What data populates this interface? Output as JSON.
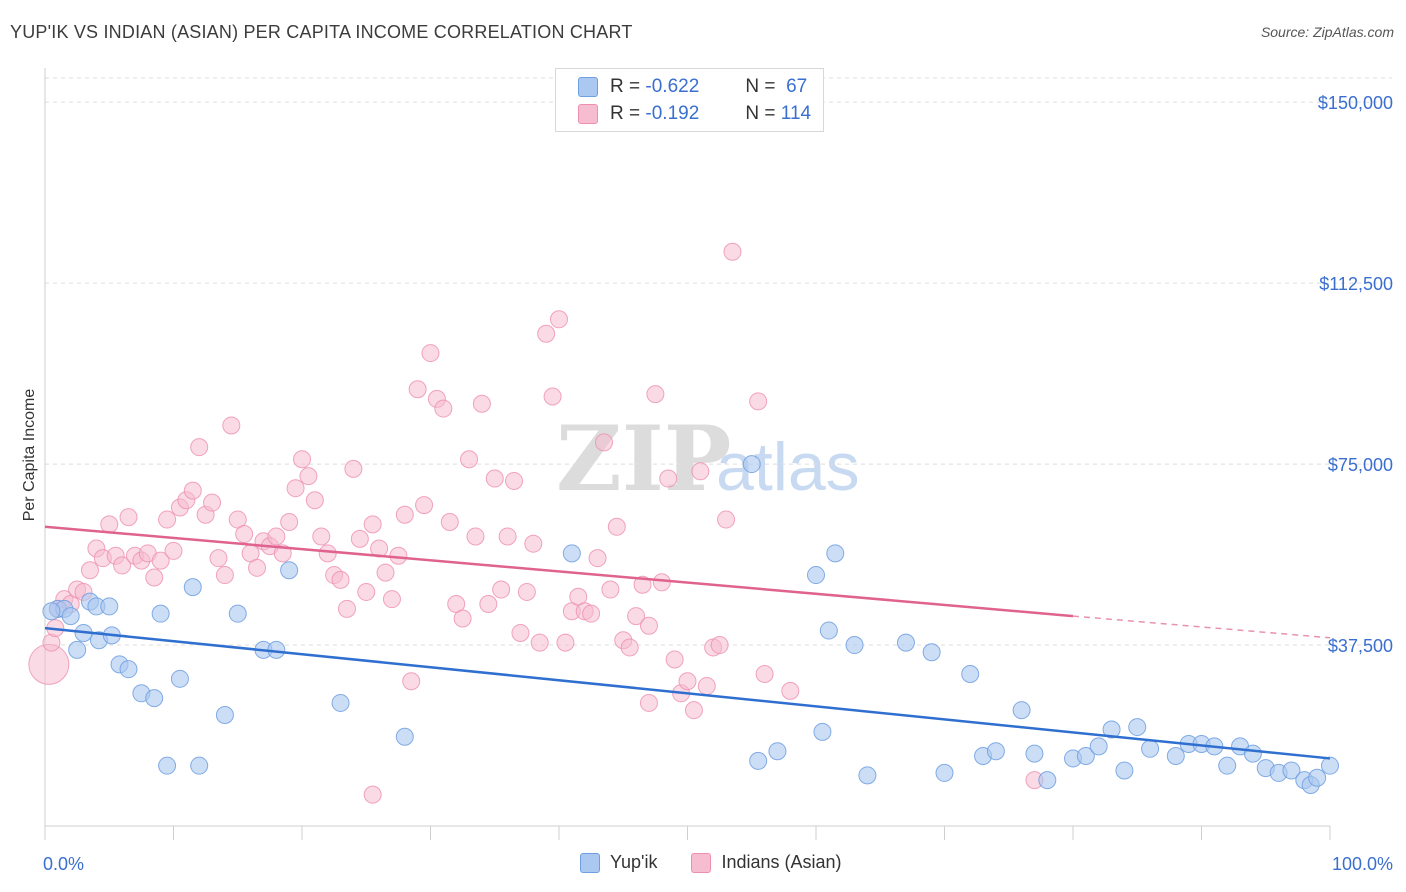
{
  "header": {
    "title": "YUP'IK VS INDIAN (ASIAN) PER CAPITA INCOME CORRELATION CHART",
    "source": "Source: ZipAtlas.com"
  },
  "watermark": {
    "zip": "ZIP",
    "atlas": "atlas"
  },
  "legend_top": {
    "rows": [
      {
        "r_label": "R =",
        "r_value": "-0.622",
        "n_label": "N =",
        "n_value": "67"
      },
      {
        "r_label": "R =",
        "r_value": "-0.192",
        "n_label": "N =",
        "n_value": "114"
      }
    ]
  },
  "colors": {
    "yupik_fill": "#aac8f0",
    "yupik_stroke": "#6f9fe0",
    "yupik_line": "#2f6fcf",
    "indian_fill": "#f6bcd0",
    "indian_stroke": "#ee8fb0",
    "indian_line": "#e0628e",
    "axis_label": "#3a6fcf"
  },
  "chart_data": {
    "type": "scatter",
    "title": "YUP'IK VS INDIAN (ASIAN) PER CAPITA INCOME CORRELATION CHART",
    "xlabel": "",
    "ylabel": "Per Capita Income",
    "xlim": [
      0,
      100
    ],
    "ylim": [
      0,
      155000
    ],
    "x_tick_labels": [
      "0.0%",
      "100.0%"
    ],
    "y_ticks": [
      37500,
      75000,
      112500,
      150000
    ],
    "y_tick_labels": [
      "$37,500",
      "$75,000",
      "$112,500",
      "$150,000"
    ],
    "grid": true,
    "legend_position": "top-center",
    "series": [
      {
        "name": "Yup'ik",
        "trend": {
          "x": [
            0,
            100
          ],
          "y": [
            41000,
            14000
          ]
        },
        "points": [
          [
            1,
            45000
          ],
          [
            1.5,
            45000
          ],
          [
            2,
            43500
          ],
          [
            2.5,
            36500
          ],
          [
            3,
            40000
          ],
          [
            3.5,
            46500
          ],
          [
            4,
            45500
          ],
          [
            4.2,
            38500
          ],
          [
            5,
            45500
          ],
          [
            5.2,
            39500
          ],
          [
            5.8,
            33500
          ],
          [
            6.5,
            32500
          ],
          [
            7.5,
            27500
          ],
          [
            8.5,
            26500
          ],
          [
            9,
            44000
          ],
          [
            9.5,
            12500
          ],
          [
            10.5,
            30500
          ],
          [
            11.5,
            49500
          ],
          [
            12,
            12500
          ],
          [
            14,
            23000
          ],
          [
            15,
            44000
          ],
          [
            17,
            36500
          ],
          [
            18,
            36500
          ],
          [
            19,
            53000
          ],
          [
            23,
            25500
          ],
          [
            28,
            18500
          ],
          [
            41,
            56500
          ],
          [
            55,
            75000
          ],
          [
            55.5,
            13500
          ],
          [
            57,
            15500
          ],
          [
            60,
            52000
          ],
          [
            60.5,
            19500
          ],
          [
            61,
            40500
          ],
          [
            61.5,
            56500
          ],
          [
            63,
            37500
          ],
          [
            64,
            10500
          ],
          [
            67,
            38000
          ],
          [
            69,
            36000
          ],
          [
            70,
            11000
          ],
          [
            72,
            31500
          ],
          [
            73,
            14500
          ],
          [
            74,
            15500
          ],
          [
            76,
            24000
          ],
          [
            77,
            15000
          ],
          [
            78,
            9500
          ],
          [
            80,
            14000
          ],
          [
            81,
            14500
          ],
          [
            82,
            16500
          ],
          [
            83,
            20000
          ],
          [
            84,
            11500
          ],
          [
            85,
            20500
          ],
          [
            86,
            16000
          ],
          [
            88,
            14500
          ],
          [
            89,
            17000
          ],
          [
            90,
            17000
          ],
          [
            91,
            16500
          ],
          [
            92,
            12500
          ],
          [
            93,
            16500
          ],
          [
            94,
            15000
          ],
          [
            95,
            12000
          ],
          [
            96,
            11000
          ],
          [
            97,
            11500
          ],
          [
            98,
            9500
          ],
          [
            98.5,
            8500
          ],
          [
            99,
            10000
          ],
          [
            100,
            12500
          ],
          [
            0.5,
            44500
          ]
        ]
      },
      {
        "name": "Indians (Asian)",
        "trend": {
          "x": [
            0,
            80,
            100
          ],
          "y": [
            62000,
            43500,
            39000
          ],
          "dashed_from_x": 80
        },
        "points": [
          [
            0.3,
            33500
          ],
          [
            0.5,
            38000
          ],
          [
            0.8,
            41000
          ],
          [
            1,
            45000
          ],
          [
            1.5,
            47000
          ],
          [
            2,
            46000
          ],
          [
            2.5,
            49000
          ],
          [
            3,
            48500
          ],
          [
            3.5,
            53000
          ],
          [
            4,
            57500
          ],
          [
            4.5,
            55500
          ],
          [
            5,
            62500
          ],
          [
            5.5,
            56000
          ],
          [
            6,
            54000
          ],
          [
            6.5,
            64000
          ],
          [
            7,
            56000
          ],
          [
            7.5,
            55000
          ],
          [
            8,
            56500
          ],
          [
            8.5,
            51500
          ],
          [
            9,
            55000
          ],
          [
            9.5,
            63500
          ],
          [
            10,
            57000
          ],
          [
            10.5,
            66000
          ],
          [
            11,
            67500
          ],
          [
            11.5,
            69500
          ],
          [
            12,
            78500
          ],
          [
            12.5,
            64500
          ],
          [
            13,
            67000
          ],
          [
            13.5,
            55500
          ],
          [
            14,
            52000
          ],
          [
            14.5,
            83000
          ],
          [
            15,
            63500
          ],
          [
            15.5,
            60500
          ],
          [
            16,
            56500
          ],
          [
            16.5,
            53500
          ],
          [
            17,
            59000
          ],
          [
            17.5,
            58000
          ],
          [
            18,
            60000
          ],
          [
            18.5,
            56500
          ],
          [
            19,
            63000
          ],
          [
            19.5,
            70000
          ],
          [
            20,
            76000
          ],
          [
            20.5,
            72500
          ],
          [
            21,
            67500
          ],
          [
            21.5,
            60000
          ],
          [
            22,
            56500
          ],
          [
            22.5,
            52000
          ],
          [
            23,
            51000
          ],
          [
            23.5,
            45000
          ],
          [
            24,
            74000
          ],
          [
            24.5,
            59500
          ],
          [
            25,
            48500
          ],
          [
            25.5,
            62500
          ],
          [
            26,
            57500
          ],
          [
            26.5,
            52500
          ],
          [
            27,
            47000
          ],
          [
            27.5,
            56000
          ],
          [
            28,
            64500
          ],
          [
            28.5,
            30000
          ],
          [
            29,
            90500
          ],
          [
            29.5,
            66500
          ],
          [
            30,
            98000
          ],
          [
            30.5,
            88500
          ],
          [
            31,
            86500
          ],
          [
            31.5,
            63000
          ],
          [
            32,
            46000
          ],
          [
            32.5,
            43000
          ],
          [
            33,
            76000
          ],
          [
            33.5,
            60000
          ],
          [
            34,
            87500
          ],
          [
            34.5,
            46000
          ],
          [
            35,
            72000
          ],
          [
            35.5,
            49000
          ],
          [
            36,
            60000
          ],
          [
            36.5,
            71500
          ],
          [
            37,
            40000
          ],
          [
            37.5,
            48500
          ],
          [
            38,
            58500
          ],
          [
            38.5,
            38000
          ],
          [
            39,
            102000
          ],
          [
            39.5,
            89000
          ],
          [
            40,
            105000
          ],
          [
            40.5,
            38000
          ],
          [
            41,
            44500
          ],
          [
            41.5,
            47500
          ],
          [
            42,
            44500
          ],
          [
            42.5,
            44000
          ],
          [
            43,
            55500
          ],
          [
            43.5,
            79500
          ],
          [
            44,
            49000
          ],
          [
            44.5,
            62000
          ],
          [
            45,
            38500
          ],
          [
            45.5,
            37000
          ],
          [
            46,
            43500
          ],
          [
            46.5,
            50000
          ],
          [
            47,
            41500
          ],
          [
            47.5,
            89500
          ],
          [
            48,
            50500
          ],
          [
            48.5,
            72000
          ],
          [
            49,
            34500
          ],
          [
            49.5,
            27500
          ],
          [
            50,
            30000
          ],
          [
            50.5,
            24000
          ],
          [
            51,
            73500
          ],
          [
            51.5,
            29000
          ],
          [
            52,
            37000
          ],
          [
            52.5,
            37500
          ],
          [
            53,
            63500
          ],
          [
            53.5,
            119000
          ],
          [
            55.5,
            88000
          ],
          [
            56,
            31500
          ],
          [
            58,
            28000
          ],
          [
            77,
            9500
          ],
          [
            25.5,
            6500
          ],
          [
            47,
            25500
          ]
        ]
      }
    ]
  },
  "legend_bottom": {
    "items": [
      "Yup'ik",
      "Indians (Asian)"
    ]
  }
}
